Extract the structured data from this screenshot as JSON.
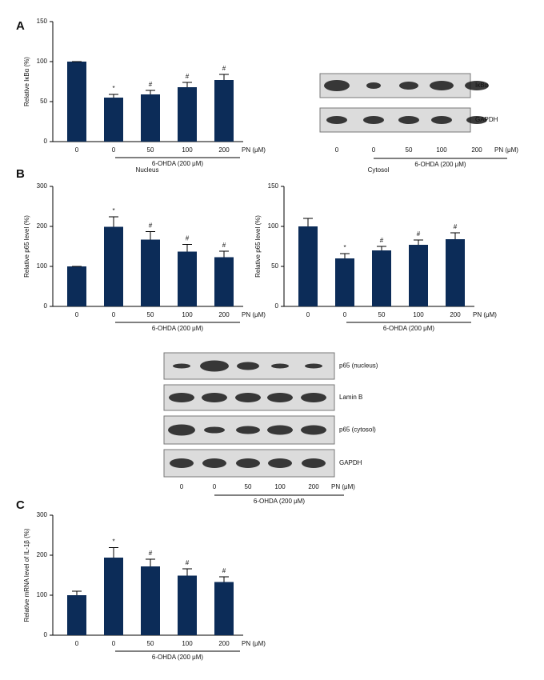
{
  "panels": [
    "A",
    "B",
    "C"
  ],
  "chart_data": [
    {
      "type": "bar",
      "ylabel": "Relative IκBα (%)",
      "categories": [
        "0",
        "0",
        "50",
        "100",
        "200"
      ],
      "values": [
        100,
        55,
        59,
        68,
        77
      ],
      "errors": [
        0,
        4,
        5,
        6,
        7
      ],
      "annotations": [
        null,
        "*",
        "#",
        "#",
        "#"
      ],
      "x_unit": "PN (μM)",
      "treatment": "6-OHDA (200 μM)",
      "color": "#0c2c58",
      "ylim": [
        0,
        150
      ],
      "yticks": [
        0,
        50,
        100,
        150
      ]
    },
    {
      "type": "bar",
      "title": "Nucleus",
      "ylabel": "Relative p65 level (%)",
      "categories": [
        "0",
        "0",
        "50",
        "100",
        "200"
      ],
      "values": [
        100,
        199,
        167,
        137,
        123
      ],
      "errors": [
        0,
        25,
        20,
        18,
        15
      ],
      "annotations": [
        null,
        "*",
        "#",
        "#",
        "#"
      ],
      "x_unit": "PN (μM)",
      "treatment": "6-OHDA (200 μM)",
      "color": "#0c2c58",
      "ylim": [
        0,
        300
      ],
      "yticks": [
        0,
        100,
        200,
        300
      ]
    },
    {
      "type": "bar",
      "title": "Cytosol",
      "ylabel": "Relative p65 level (%)",
      "categories": [
        "0",
        "0",
        "50",
        "100",
        "200"
      ],
      "values": [
        100,
        60,
        70,
        77,
        84
      ],
      "errors": [
        10,
        6,
        5,
        6,
        8
      ],
      "annotations": [
        null,
        "*",
        "#",
        "#",
        "#"
      ],
      "x_unit": "PN (μM)",
      "treatment": "6-OHDA (200 μM)",
      "color": "#0c2c58",
      "ylim": [
        0,
        150
      ],
      "yticks": [
        0,
        50,
        100,
        150
      ]
    },
    {
      "type": "bar",
      "ylabel": "Relative mRNA level of IL-1β (%)",
      "categories": [
        "0",
        "0",
        "50",
        "100",
        "200"
      ],
      "values": [
        100,
        194,
        172,
        149,
        133
      ],
      "errors": [
        10,
        25,
        18,
        17,
        13
      ],
      "annotations": [
        null,
        "*",
        "#",
        "#",
        "#"
      ],
      "x_unit": "PN (μM)",
      "treatment": "6-OHDA (200 μM)",
      "color": "#0c2c58",
      "ylim": [
        0,
        300
      ],
      "yticks": [
        0,
        100,
        200,
        300
      ]
    }
  ],
  "blots": [
    {
      "rows": [
        "IκBα",
        "GAPDH"
      ],
      "lanes": [
        "0",
        "0",
        "50",
        "100",
        "200"
      ],
      "x_unit": "PN (μM)",
      "treatment": "6-OHDA (200 μM)"
    },
    {
      "rows": [
        "p65 (nucleus)",
        "Lamin B",
        "p65 (cytosol)",
        "GAPDH"
      ],
      "lanes": [
        "0",
        "0",
        "50",
        "100",
        "200"
      ],
      "x_unit": "PN (μM)",
      "treatment": "6-OHDA (200 μM)"
    }
  ]
}
